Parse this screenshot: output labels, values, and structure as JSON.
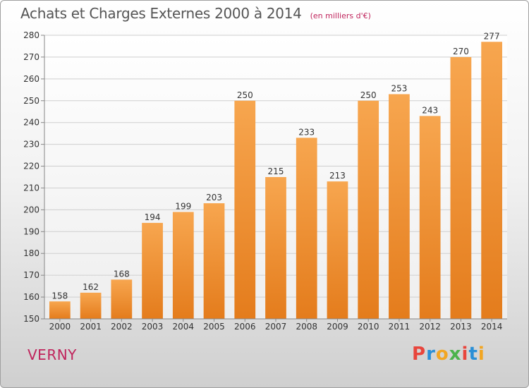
{
  "title": "Achats et Charges Externes 2000 à 2014",
  "subtitle": "(en milliers d'€)",
  "place": "VERNY",
  "brand": {
    "letters": [
      "P",
      "r",
      "o",
      "x",
      "i",
      "t",
      "i"
    ],
    "colors": [
      "#e8453c",
      "#2a8fd6",
      "#f2a623",
      "#4bb34b",
      "#e8453c",
      "#2a8fd6",
      "#f2a623"
    ]
  },
  "colors": {
    "bar_light": "#f7a64f",
    "bar_dark": "#e47c1c",
    "grid": "#cfcfcf",
    "axis_text": "#333333"
  },
  "chart_data": {
    "type": "bar",
    "categories": [
      "2000",
      "2001",
      "2002",
      "2003",
      "2004",
      "2005",
      "2006",
      "2007",
      "2008",
      "2009",
      "2010",
      "2011",
      "2012",
      "2013",
      "2014"
    ],
    "values": [
      158,
      162,
      168,
      194,
      199,
      203,
      250,
      215,
      233,
      213,
      250,
      253,
      243,
      270,
      277
    ],
    "ylim": [
      150,
      280
    ],
    "yticks": [
      150,
      160,
      170,
      180,
      190,
      200,
      210,
      220,
      230,
      240,
      250,
      260,
      270,
      280
    ],
    "grid": true,
    "data_labels": true
  }
}
